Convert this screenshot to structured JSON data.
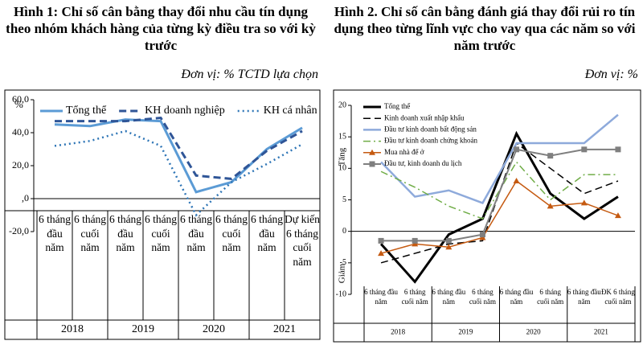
{
  "chart_data": [
    {
      "type": "line",
      "title": "Hình 1:  Chỉ số cân bằng thay đổi nhu cầu tín dụng theo nhóm khách hàng của từng kỳ điều tra so với kỳ trước",
      "unit": "Đơn vị: % TCTD lựa chọn",
      "y_unit_label": "%",
      "categories": [
        "6 tháng đầu năm",
        "6 tháng cuối năm",
        "6 tháng đầu năm",
        "6 tháng cuối năm",
        "6 tháng đầu năm",
        "6 tháng cuối năm",
        "6 tháng đầu năm",
        "Dự kiến 6 tháng cuối năm"
      ],
      "groups": [
        "2018",
        "2019",
        "2020",
        "2021"
      ],
      "series": [
        {
          "name": "Tổng thể",
          "color": "#5b9bd5",
          "dash": "solid",
          "width": 3,
          "values": [
            45,
            44,
            48,
            47,
            4,
            10,
            30,
            43
          ]
        },
        {
          "name": "KH doanh nghiệp",
          "color": "#2f5597",
          "dash": "dashed",
          "width": 3,
          "values": [
            47,
            47,
            47,
            49,
            14,
            12,
            29,
            41
          ]
        },
        {
          "name": "KH cá nhân",
          "color": "#2e75b6",
          "dash": "dotted",
          "width": 2.5,
          "values": [
            32,
            35,
            41,
            32,
            -10,
            10,
            21,
            33
          ]
        }
      ],
      "ylim": [
        -20,
        60
      ],
      "yticks": [
        {
          "value": 60,
          "label": "60,0"
        },
        {
          "value": 40,
          "label": "40,0"
        },
        {
          "value": 20,
          "label": "20,0"
        },
        {
          "value": 0,
          "label": ",0"
        },
        {
          "value": -20,
          "label": "-20,0"
        }
      ],
      "legend": "top"
    },
    {
      "type": "line",
      "title": "Hình 2. Chỉ số cân bằng đánh giá thay đổi rủi ro tín dụng theo từng lĩnh vực cho vay qua các năm so với năm trước",
      "unit": "Đơn vị: %",
      "y_label_up": "Tăng",
      "y_label_down": "Giảm",
      "categories": [
        "6 tháng đầu năm",
        "6 tháng cuối năm",
        "6 tháng đầu năm",
        "6 tháng cuối năm",
        "6 tháng đầu năm",
        "6 tháng cuối năm",
        "6 tháng đầu năm",
        "ĐK 6 tháng cuối năm"
      ],
      "groups": [
        "2018",
        "2019",
        "2020",
        "2021"
      ],
      "series": [
        {
          "name": "Tổng thể",
          "color": "#000000",
          "dash": "solid",
          "width": 3,
          "values": [
            -2,
            -8,
            -0.5,
            2,
            15.5,
            6,
            2,
            5.5
          ]
        },
        {
          "name": "Kinh doanh xuất nhập khẩu",
          "color": "#000000",
          "dash": "dashed",
          "width": 1.5,
          "values": [
            -5,
            -3.5,
            -2,
            -1.5,
            14,
            10,
            6,
            8
          ]
        },
        {
          "name": "Đầu tư kinh doanh bất động sản",
          "color": "#8eaadb",
          "dash": "solid",
          "width": 2.5,
          "values": [
            11,
            5.5,
            6.5,
            4.5,
            14,
            14,
            14,
            18.5
          ]
        },
        {
          "name": "Đầu tư kinh doanh chứng khoán",
          "color": "#70ad47",
          "dash": "dashdot",
          "width": 1.5,
          "values": [
            9.5,
            7,
            4,
            2,
            11,
            5,
            9,
            9
          ]
        },
        {
          "name": "Mua nhà để ở",
          "color": "#c55a11",
          "dash": "solid",
          "width": 1.5,
          "marker": "triangle",
          "values": [
            -3.5,
            -2,
            -2.5,
            -1,
            8,
            4,
            4.5,
            2.5
          ]
        },
        {
          "name": "Đầu tư, kinh doanh du lịch",
          "color": "#7f7f7f",
          "dash": "solid",
          "width": 2,
          "marker": "square",
          "values": [
            -1.5,
            -1.5,
            -1.5,
            -0.5,
            13,
            12,
            13,
            13
          ]
        }
      ],
      "ylim": [
        -10,
        20
      ],
      "yticks": [
        20,
        15,
        10,
        5,
        0,
        -5,
        -10
      ],
      "legend": "upper left"
    }
  ]
}
